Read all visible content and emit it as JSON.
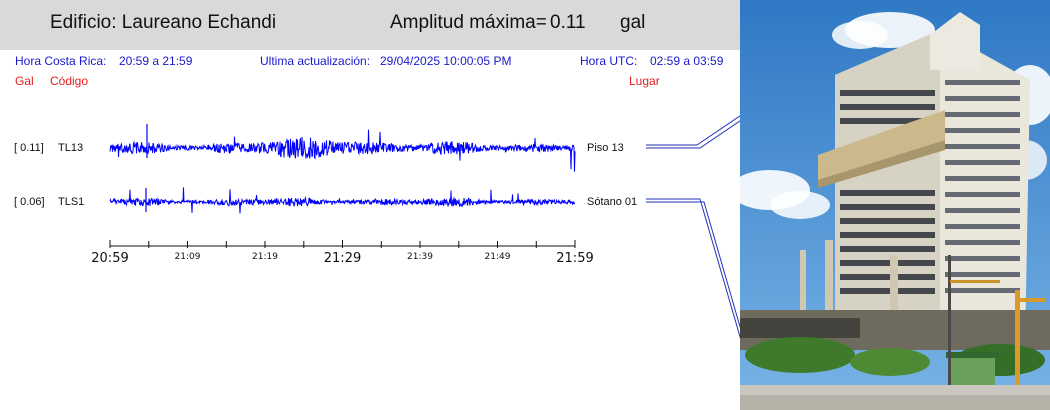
{
  "header": {
    "building_label": "Edificio: Laureano Echandi",
    "max_label": "Amplitud máxima=",
    "max_value": "0.11",
    "max_unit": "gal"
  },
  "info": {
    "cr_time_label": "Hora Costa Rica:",
    "cr_time_value": "20:59 a 21:59",
    "update_label": "Ultima actualización:",
    "update_value": "29/04/2025 10:00:05 PM",
    "utc_label": "Hora UTC:",
    "utc_value": "02:59 a 03:59"
  },
  "columns": {
    "gal": "Gal",
    "code": "Código",
    "place": "Lugar"
  },
  "colors": {
    "trace": "#0000ff",
    "info_text": "#1a1acc",
    "column_text": "#e0201f",
    "header_bg": "#d9d9d9"
  },
  "chart_data": {
    "type": "line",
    "x_ticks_major": [
      "20:59",
      "21:29",
      "21:59"
    ],
    "x_ticks_minor": [
      "21:09",
      "21:19",
      "21:39",
      "21:49"
    ],
    "series": [
      {
        "gal": "[   0.11]",
        "code": "TL13",
        "place": "Piso 13",
        "peak": 0.11
      },
      {
        "gal": "[   0.06]",
        "code": "TLS1",
        "place": "Sótano 01",
        "peak": 0.06
      }
    ]
  },
  "photo": {
    "subject": "building-photo",
    "sky": "#3c86c9",
    "building": "#e9e6dc"
  }
}
